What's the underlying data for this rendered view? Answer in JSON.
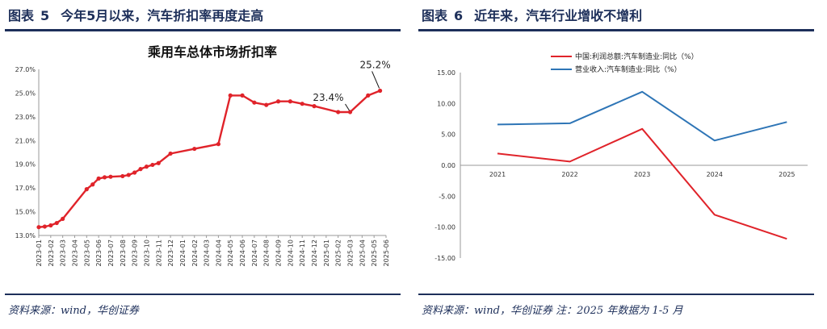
{
  "left": {
    "fig_label": "图表",
    "fig_number": "5",
    "fig_heading": "今年5月以来，汽车折扣率再度走高",
    "source": "资料来源：wind，华创证券"
  },
  "right": {
    "fig_label": "图表",
    "fig_number": "6",
    "fig_heading": "近年来，汽车行业增收不增利",
    "source": "资料来源：wind，华创证券  注：2025 年数据为 1-5 月"
  },
  "chart_data": [
    {
      "type": "line",
      "title": "乘用车总体市场折扣率",
      "ylim": [
        13.0,
        27.0
      ],
      "yticks": [
        "13.0%",
        "15.0%",
        "17.0%",
        "19.0%",
        "21.0%",
        "23.0%",
        "25.0%",
        "27.0%"
      ],
      "yunit": "%",
      "xtick_labels": [
        "2023-01",
        "2023-02",
        "2023-03",
        "2023-04",
        "2023-05",
        "2023-06",
        "2023-07",
        "2023-08",
        "2023-09",
        "2023-10",
        "2023-11",
        "2023-12",
        "2024-01",
        "2024-02",
        "2024-03",
        "2024-04",
        "2024-05",
        "2024-06",
        "2024-07",
        "2024-08",
        "2024-09",
        "2024-10",
        "2024-11",
        "2024-12",
        "2025-01",
        "2025-02",
        "2025-03",
        "2025-04",
        "2025-05",
        "2025-06"
      ],
      "series": [
        {
          "color": "#e0232a",
          "points": [
            [
              0,
              13.7
            ],
            [
              0.5,
              13.75
            ],
            [
              1,
              13.85
            ],
            [
              1.5,
              14.05
            ],
            [
              2,
              14.4
            ],
            [
              4,
              16.9
            ],
            [
              4.5,
              17.3
            ],
            [
              5,
              17.8
            ],
            [
              5.5,
              17.9
            ],
            [
              6,
              17.95
            ],
            [
              7,
              18.0
            ],
            [
              7.5,
              18.1
            ],
            [
              8,
              18.3
            ],
            [
              8.5,
              18.6
            ],
            [
              9,
              18.8
            ],
            [
              9.5,
              18.95
            ],
            [
              10,
              19.1
            ],
            [
              11,
              19.9
            ],
            [
              13,
              20.3
            ],
            [
              15,
              20.7
            ],
            [
              16,
              24.8
            ],
            [
              17,
              24.8
            ],
            [
              18,
              24.2
            ],
            [
              19,
              24.0
            ],
            [
              20,
              24.3
            ],
            [
              21,
              24.3
            ],
            [
              22,
              24.1
            ],
            [
              23,
              23.9
            ],
            [
              25,
              23.4
            ],
            [
              26,
              23.4
            ],
            [
              27.5,
              24.8
            ],
            [
              28.5,
              25.2
            ]
          ]
        }
      ],
      "annotations": [
        {
          "text": "23.4%",
          "x": 26,
          "y": 23.4
        },
        {
          "text": "25.2%",
          "x": 28.5,
          "y": 25.2
        }
      ]
    },
    {
      "type": "line",
      "categories": [
        "2021",
        "2022",
        "2023",
        "2024",
        "2025"
      ],
      "ylim": [
        -15.0,
        15.0
      ],
      "yticks": [
        "15.00",
        "10.00",
        "5.00",
        "0.00",
        "-5.00",
        "-10.00",
        "-15.00"
      ],
      "series": [
        {
          "name": "中国:利润总额:汽车制造业:同比（%）",
          "color": "#e0232a",
          "values": [
            1.9,
            0.6,
            5.9,
            -8.0,
            -11.9
          ]
        },
        {
          "name": "营业收入:汽车制造业:同比（%）",
          "color": "#2e75b6",
          "values": [
            6.6,
            6.8,
            11.9,
            4.0,
            7.0
          ]
        }
      ],
      "legend": "top"
    }
  ]
}
